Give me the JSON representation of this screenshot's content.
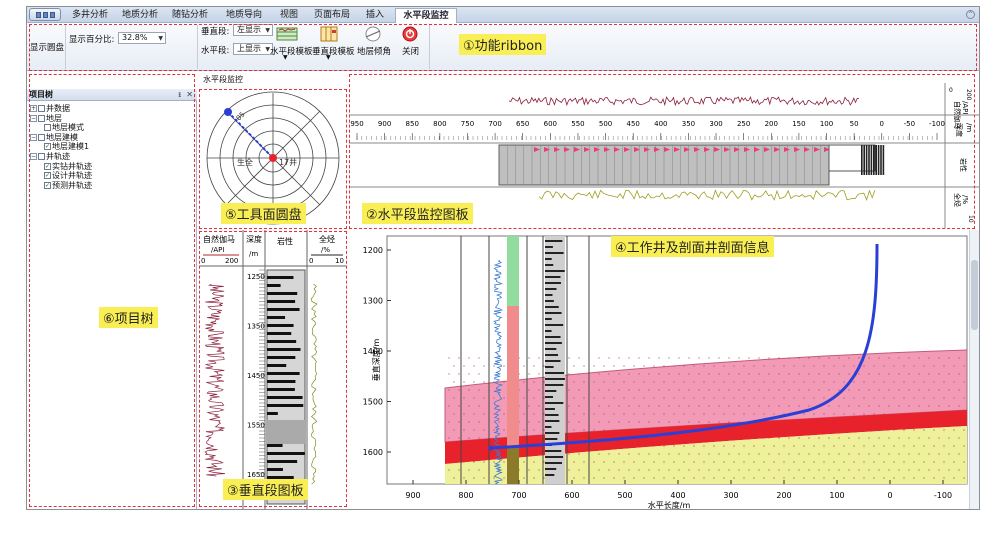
{
  "tabs": [
    "多井分析",
    "地质分析",
    "随钻分析",
    "地质导向",
    "视图",
    "页面布局",
    "插入",
    "水平段监控"
  ],
  "ribbon": {
    "show_disk": "显示圆盘",
    "percent_label": "显示百分比:",
    "percent_value": "32.8%",
    "vertical_label": "垂直段:",
    "vertical_value": "左显示",
    "horizontal_label": "水平段:",
    "horizontal_value": "上显示",
    "btn_h_template": "水平段模板",
    "btn_v_template": "垂直段模板",
    "btn_dip": "地层倾角",
    "btn_close": "关闭"
  },
  "annotations": {
    "ribbon": "①功能ribbon",
    "horizontal_panel": "②水平段监控图板",
    "vertical_panel": "③垂直段图板",
    "section_panel": "④工作井及剖面井剖面信息",
    "disk_panel": "⑤工具面圆盘",
    "tree_panel": "⑥项目树"
  },
  "monitor_title": "水平段监控",
  "tree": {
    "title": "项目树",
    "items": [
      {
        "label": "井数据",
        "level": 0,
        "expander": "+",
        "check": ""
      },
      {
        "label": "地层",
        "level": 0,
        "expander": "-",
        "check": ""
      },
      {
        "label": "地层模式",
        "level": 1,
        "expander": "",
        "check": ""
      },
      {
        "label": "地层建模",
        "level": 0,
        "expander": "-",
        "check": ""
      },
      {
        "label": "地层建模1",
        "level": 1,
        "expander": "",
        "check": "✓"
      },
      {
        "label": "井轨迹",
        "level": 0,
        "expander": "-",
        "check": ""
      },
      {
        "label": "实钻井轨迹",
        "level": 1,
        "expander": "",
        "check": "✓"
      },
      {
        "label": "设计井轨迹",
        "level": 1,
        "expander": "",
        "check": "✓"
      },
      {
        "label": "预测井轨迹",
        "level": 1,
        "expander": "",
        "check": "✓"
      }
    ]
  },
  "disk": {
    "upper_label": "生全",
    "lower_label": "17井",
    "tick_label": "05"
  },
  "horizontal": {
    "x_ticks": [
      "950",
      "900",
      "850",
      "800",
      "750",
      "700",
      "650",
      "600",
      "550",
      "500",
      "450",
      "400",
      "350",
      "300",
      "250",
      "200",
      "150",
      "100",
      "50",
      "0",
      "-50",
      "-100"
    ],
    "gr_label": "自然伽马",
    "gr_unit": "/API",
    "gr_range": [
      "0",
      "200"
    ],
    "depth_label": "深度",
    "depth_unit": "/m",
    "lith_label": "岩性",
    "full_label": "全烃",
    "full_unit": "/%",
    "full_range": [
      "0",
      "10"
    ]
  },
  "vertical": {
    "gr_label": "自然伽马",
    "gr_unit": "/API",
    "gr_range": [
      "0",
      "200"
    ],
    "depth_label": "深度",
    "depth_unit": "/m",
    "lith_label": "岩性",
    "full_label": "全烃",
    "full_unit": "/%",
    "full_range": [
      "0",
      "10"
    ],
    "depth_ticks": [
      "1250",
      "1350",
      "1450",
      "1550",
      "1650"
    ]
  },
  "section": {
    "y_label": "垂直深度/m",
    "x_label": "水平长度/m",
    "y_ticks": [
      "1200",
      "1300",
      "1400",
      "1500",
      "1600"
    ],
    "x_ticks": [
      "900",
      "800",
      "700",
      "600",
      "500",
      "400",
      "300",
      "200",
      "100",
      "0",
      "-100"
    ]
  },
  "colors": {
    "accent_red": "#e0323a",
    "label_yellow": "#f9ef55",
    "pink_layer": "#f39bb6",
    "red_layer": "#e8212b",
    "yellow_layer": "#eef09a",
    "trajectory_blue": "#2b3fd6"
  }
}
